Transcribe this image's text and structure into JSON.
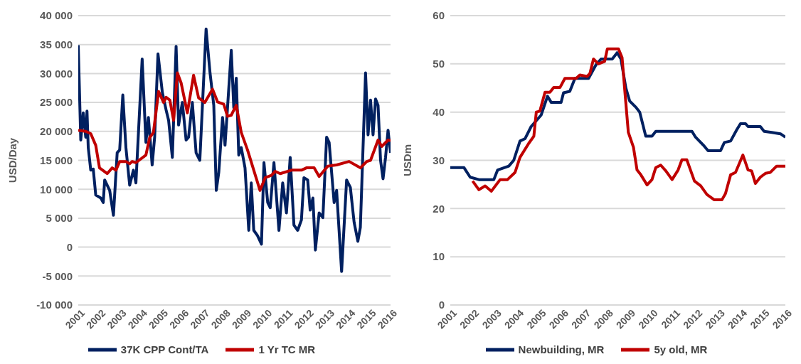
{
  "chart_data": [
    {
      "type": "line",
      "ylabel": "USD/Day",
      "xlim": [
        2001,
        2016
      ],
      "xticks": [
        2001,
        2002,
        2003,
        2004,
        2005,
        2006,
        2007,
        2008,
        2009,
        2010,
        2011,
        2012,
        2013,
        2014,
        2015,
        2016
      ],
      "ylim": [
        -10000,
        40000
      ],
      "yticks": [
        {
          "value": -10000,
          "label": "-10 000"
        },
        {
          "value": -5000,
          "label": "-5 000"
        },
        0,
        {
          "value": 5000,
          "label": "5 000"
        },
        {
          "value": 10000,
          "label": "10 000"
        },
        {
          "value": 15000,
          "label": "15 000"
        },
        {
          "value": 20000,
          "label": "20 000"
        },
        {
          "value": 25000,
          "label": "25 000"
        },
        {
          "value": 30000,
          "label": "30 000"
        },
        {
          "value": 35000,
          "label": "35 000"
        },
        {
          "value": 40000,
          "label": "40 000"
        }
      ],
      "grid": "y",
      "legend": "bottom",
      "marker": "none",
      "line_style": "solid",
      "series": [
        {
          "name": "37K CPP Cont/TA",
          "color": "#002060",
          "x": [
            2001.0,
            2001.12,
            2001.24,
            2001.36,
            2001.42,
            2001.48,
            2001.6,
            2001.72,
            2001.84,
            2002.08,
            2002.2,
            2002.27,
            2002.51,
            2002.69,
            2002.87,
            2002.99,
            2003.14,
            2003.29,
            2003.47,
            2003.65,
            2003.77,
            2004.07,
            2004.25,
            2004.37,
            2004.55,
            2004.67,
            2004.83,
            2005.04,
            2005.22,
            2005.34,
            2005.52,
            2005.7,
            2005.82,
            2006.0,
            2006.18,
            2006.3,
            2006.48,
            2006.66,
            2006.84,
            2006.96,
            2007.14,
            2007.33,
            2007.51,
            2007.63,
            2007.75,
            2007.93,
            2008.05,
            2008.17,
            2008.35,
            2008.47,
            2008.59,
            2008.71,
            2008.83,
            2009.01,
            2009.19,
            2009.31,
            2009.43,
            2009.61,
            2009.8,
            2009.92,
            2010.1,
            2010.22,
            2010.4,
            2010.64,
            2010.82,
            2011.0,
            2011.18,
            2011.36,
            2011.54,
            2011.72,
            2011.84,
            2012.02,
            2012.14,
            2012.27,
            2012.39,
            2012.57,
            2012.75,
            2012.93,
            2013.05,
            2013.29,
            2013.41,
            2013.65,
            2013.89,
            2014.07,
            2014.25,
            2014.43,
            2014.55,
            2014.8,
            2014.92,
            2015.04,
            2015.16,
            2015.28,
            2015.4,
            2015.52,
            2015.64,
            2015.76,
            2015.88,
            2016.0
          ],
          "values": [
            34900,
            18500,
            23200,
            19000,
            23500,
            17200,
            13300,
            13500,
            9000,
            8500,
            7700,
            11600,
            9800,
            5500,
            16300,
            16800,
            26300,
            17200,
            10700,
            13300,
            11100,
            32500,
            18100,
            22400,
            14200,
            19000,
            33400,
            26700,
            23700,
            21900,
            15500,
            34700,
            21100,
            25000,
            18500,
            19000,
            25000,
            16300,
            15000,
            24100,
            37700,
            30100,
            24500,
            9800,
            12900,
            22400,
            17600,
            24100,
            34000,
            24100,
            29200,
            15900,
            17200,
            13700,
            2900,
            11100,
            2900,
            2000,
            500,
            14600,
            7700,
            6800,
            14600,
            2900,
            11100,
            5900,
            15500,
            3800,
            2900,
            4700,
            12000,
            11600,
            6400,
            8500,
            -500,
            5900,
            5100,
            19000,
            18100,
            7700,
            9800,
            -4200,
            11600,
            10300,
            4300,
            1000,
            3400,
            30100,
            19400,
            25400,
            19400,
            25600,
            24500,
            15000,
            11800,
            15500,
            20200,
            16300
          ]
        },
        {
          "name": "1 Yr TC MR",
          "color": "#c00000",
          "x": [
            2001.0,
            2001.36,
            2001.6,
            2001.84,
            2002.02,
            2002.39,
            2002.63,
            2002.81,
            2002.99,
            2003.29,
            2003.47,
            2003.59,
            2003.77,
            2004.25,
            2004.43,
            2004.61,
            2004.86,
            2005.1,
            2005.22,
            2005.4,
            2005.58,
            2005.76,
            2005.94,
            2006.24,
            2006.54,
            2006.78,
            2007.08,
            2007.45,
            2007.69,
            2007.99,
            2008.17,
            2008.35,
            2008.59,
            2008.83,
            2009.13,
            2009.43,
            2009.73,
            2009.98,
            2010.28,
            2010.46,
            2010.7,
            2011.24,
            2011.72,
            2011.96,
            2012.33,
            2012.57,
            2012.99,
            2013.41,
            2014.01,
            2014.55,
            2014.86,
            2015.04,
            2015.4,
            2015.58,
            2015.88,
            2016.0
          ],
          "values": [
            20200,
            20000,
            19600,
            17600,
            13700,
            12700,
            13700,
            13300,
            14800,
            14800,
            14400,
            14800,
            14600,
            15900,
            18900,
            19800,
            26900,
            25000,
            25900,
            25400,
            21900,
            30100,
            28400,
            23200,
            29700,
            25800,
            25000,
            27300,
            25100,
            24700,
            22600,
            22800,
            24500,
            19800,
            16800,
            13300,
            9800,
            12000,
            12400,
            13100,
            12700,
            13300,
            13300,
            13700,
            13700,
            12200,
            14000,
            14200,
            14800,
            13700,
            14800,
            15000,
            18500,
            17400,
            18500,
            18400
          ]
        }
      ]
    },
    {
      "type": "line",
      "ylabel": "USDm",
      "xlim": [
        2001,
        2016
      ],
      "xticks": [
        2001,
        2002,
        2003,
        2004,
        2005,
        2006,
        2007,
        2008,
        2009,
        2010,
        2011,
        2012,
        2013,
        2014,
        2015,
        2016
      ],
      "ylim": [
        0,
        60
      ],
      "yticks": [
        0,
        10,
        20,
        30,
        40,
        50,
        60
      ],
      "grid": "y",
      "legend": "bottom",
      "marker": "none",
      "line_style": "solid",
      "series": [
        {
          "name": "Newbuilding, MR",
          "color": "#002060",
          "x": [
            2001.0,
            2001.61,
            2001.89,
            2002.28,
            2002.95,
            2003.12,
            2003.62,
            2003.84,
            2004.12,
            2004.35,
            2004.62,
            2005.07,
            2005.35,
            2005.52,
            2005.96,
            2006.07,
            2006.35,
            2006.58,
            2007.19,
            2007.52,
            2007.75,
            2008.25,
            2008.47,
            2008.64,
            2008.86,
            2009.03,
            2009.31,
            2009.48,
            2009.75,
            2010.03,
            2010.2,
            2011.82,
            2011.98,
            2012.32,
            2012.54,
            2013.1,
            2013.27,
            2013.55,
            2013.82,
            2013.99,
            2014.22,
            2014.33,
            2014.88,
            2015.05,
            2015.39,
            2015.78,
            2016.0
          ],
          "values": [
            28.5,
            28.5,
            26.5,
            26,
            26,
            28,
            28.8,
            30,
            34,
            34.5,
            37,
            39.4,
            43.3,
            42,
            42,
            44,
            44.3,
            47,
            47,
            49.8,
            51,
            51,
            52.3,
            51,
            45,
            42.3,
            41,
            40,
            35,
            35,
            36,
            36,
            34.8,
            33.2,
            32,
            32,
            33.7,
            34,
            36.3,
            37.6,
            37.6,
            37,
            37,
            36,
            35.8,
            35.5,
            34.8
          ]
        },
        {
          "name": "5y old, MR",
          "color": "#c00000",
          "x": [
            2002.0,
            2002.28,
            2002.56,
            2002.84,
            2003.23,
            2003.56,
            2003.9,
            2004.12,
            2004.51,
            2004.74,
            2004.85,
            2005.01,
            2005.24,
            2005.46,
            2005.63,
            2005.91,
            2006.13,
            2006.63,
            2006.8,
            2007.13,
            2007.25,
            2007.41,
            2007.63,
            2007.91,
            2008.03,
            2008.53,
            2008.69,
            2008.81,
            2008.97,
            2009.2,
            2009.36,
            2009.53,
            2009.81,
            2010.03,
            2010.2,
            2010.42,
            2010.65,
            2010.93,
            2011.2,
            2011.37,
            2011.59,
            2011.93,
            2012.21,
            2012.49,
            2012.82,
            2013.16,
            2013.32,
            2013.55,
            2013.77,
            2014.1,
            2014.33,
            2014.49,
            2014.66,
            2014.88,
            2015.11,
            2015.33,
            2015.61,
            2016.0
          ],
          "values": [
            25.7,
            23.9,
            24.7,
            23.6,
            26,
            26,
            27.5,
            30.6,
            33.5,
            35,
            40,
            40.2,
            44.1,
            44.1,
            45.1,
            45.1,
            47,
            47,
            47.7,
            47.4,
            48,
            51,
            50,
            50.5,
            53.1,
            53.1,
            51.3,
            44.6,
            35.8,
            32.7,
            28,
            27,
            24.9,
            26,
            28.5,
            29,
            27.8,
            26,
            28,
            30.1,
            30.1,
            25.7,
            24.7,
            22.9,
            21.8,
            21.8,
            23.1,
            27,
            27.5,
            31.1,
            28,
            27.8,
            25.2,
            26.5,
            27.3,
            27.5,
            28.8,
            28.8
          ]
        }
      ]
    }
  ]
}
